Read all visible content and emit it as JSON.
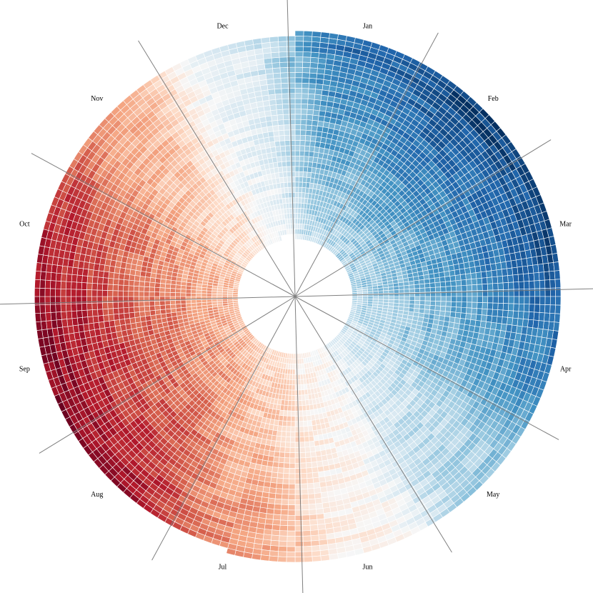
{
  "chart_data": {
    "type": "heatmap",
    "layout": "radial",
    "months": [
      "Jan",
      "Feb",
      "Mar",
      "Apr",
      "May",
      "Jun",
      "Jul",
      "Aug",
      "Sep",
      "Oct",
      "Nov",
      "Dec"
    ],
    "rings": 40,
    "segments_per_month": 16,
    "month_start_angles_deg": [
      0,
      30,
      60,
      90,
      120,
      150,
      180,
      210,
      240,
      270,
      300,
      330
    ],
    "value_range": [
      -1,
      1
    ],
    "colorscale": "RdBu",
    "colorscale_stops": [
      "#67001f",
      "#b2182b",
      "#d6604d",
      "#f4a582",
      "#fddbc7",
      "#f7f7f7",
      "#d1e5f0",
      "#92c5de",
      "#4393c3",
      "#2166ac",
      "#053061"
    ],
    "monthly_typical_value": [
      0.55,
      0.65,
      0.62,
      0.5,
      0.25,
      -0.05,
      -0.35,
      -0.6,
      -0.65,
      -0.55,
      -0.3,
      0.1
    ],
    "outer_ring_end_month_fraction": 6.5,
    "grid": false,
    "legend": "none"
  }
}
